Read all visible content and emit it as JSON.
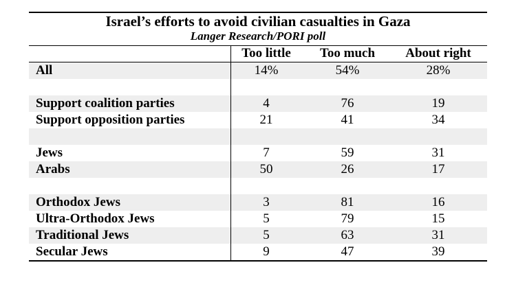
{
  "chart_data": {
    "type": "table",
    "title": "Israel’s efforts to avoid civilian casualties in Gaza",
    "subtitle": "Langer Research/PORI poll",
    "columns": [
      "Too little",
      "Too much",
      "About right"
    ],
    "rows": [
      {
        "label": "All",
        "values": [
          "14%",
          "54%",
          "28%"
        ]
      },
      {
        "label": "",
        "values": [
          "",
          "",
          ""
        ]
      },
      {
        "label": "Support coalition parties",
        "values": [
          "4",
          "76",
          "19"
        ]
      },
      {
        "label": "Support opposition parties",
        "values": [
          "21",
          "41",
          "34"
        ]
      },
      {
        "label": "",
        "values": [
          "",
          "",
          ""
        ]
      },
      {
        "label": "Jews",
        "values": [
          "7",
          "59",
          "31"
        ]
      },
      {
        "label": "Arabs",
        "values": [
          "50",
          "26",
          "17"
        ]
      },
      {
        "label": "",
        "values": [
          "",
          "",
          ""
        ]
      },
      {
        "label": "Orthodox Jews",
        "values": [
          "3",
          "81",
          "16"
        ]
      },
      {
        "label": "Ultra-Orthodox Jews",
        "values": [
          "5",
          "79",
          "15"
        ]
      },
      {
        "label": "Traditional Jews",
        "values": [
          "5",
          "63",
          "31"
        ]
      },
      {
        "label": "Secular Jews",
        "values": [
          "9",
          "47",
          "39"
        ]
      }
    ],
    "shaded_rows": "alternating",
    "grid": false
  }
}
